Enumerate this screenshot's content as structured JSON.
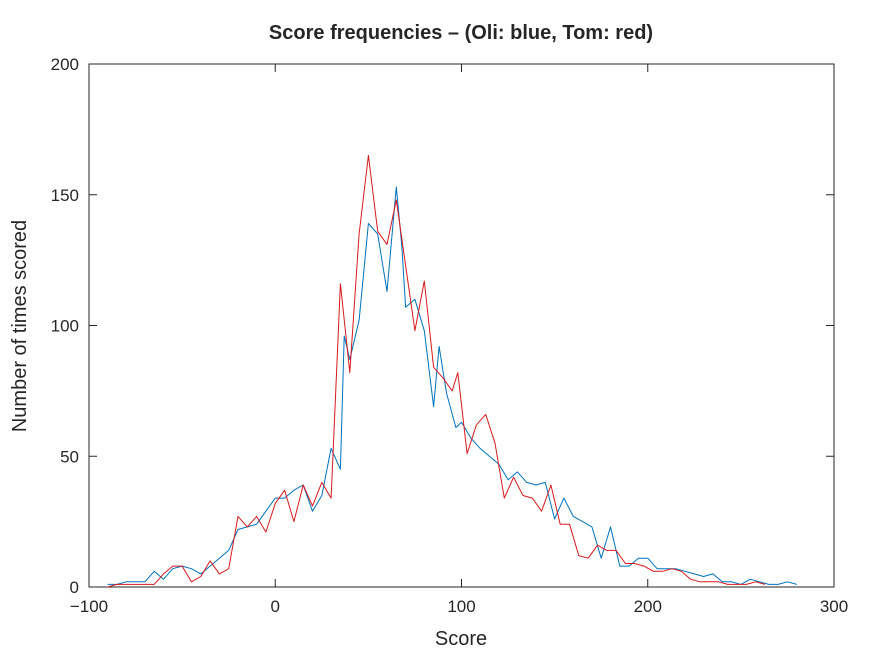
{
  "chart_data": {
    "type": "line",
    "title": "Score frequencies – (Oli: blue, Tom: red)",
    "xlabel": "Score",
    "ylabel": "Number of times scored",
    "xlim": [
      -100,
      300
    ],
    "ylim": [
      0,
      200
    ],
    "xticks": [
      -100,
      0,
      100,
      200,
      300
    ],
    "yticks": [
      0,
      50,
      100,
      150,
      200
    ],
    "xtick_labels": [
      "−100",
      "0",
      "100",
      "200",
      "300"
    ],
    "ytick_labels": [
      "0",
      "50",
      "100",
      "150",
      "200"
    ],
    "grid": false,
    "legend": "none",
    "series": [
      {
        "color": "#0072bd",
        "points": [
          [
            -90,
            1
          ],
          [
            -85,
            1
          ],
          [
            -80,
            2
          ],
          [
            -75,
            2
          ],
          [
            -70,
            2
          ],
          [
            -65,
            6
          ],
          [
            -60,
            3
          ],
          [
            -55,
            7
          ],
          [
            -50,
            8
          ],
          [
            -45,
            7
          ],
          [
            -40,
            5
          ],
          [
            -35,
            8
          ],
          [
            -30,
            11
          ],
          [
            -25,
            14
          ],
          [
            -20,
            22
          ],
          [
            -15,
            23
          ],
          [
            -10,
            24
          ],
          [
            -5,
            29
          ],
          [
            0,
            34
          ],
          [
            5,
            34
          ],
          [
            10,
            37
          ],
          [
            15,
            39
          ],
          [
            20,
            29
          ],
          [
            25,
            35
          ],
          [
            30,
            53
          ],
          [
            35,
            45
          ],
          [
            37,
            96
          ],
          [
            40,
            87
          ],
          [
            45,
            102
          ],
          [
            50,
            139
          ],
          [
            55,
            135
          ],
          [
            60,
            113
          ],
          [
            65,
            153
          ],
          [
            68,
            130
          ],
          [
            70,
            107
          ],
          [
            75,
            110
          ],
          [
            80,
            98
          ],
          [
            85,
            69
          ],
          [
            88,
            92
          ],
          [
            92,
            74
          ],
          [
            97,
            61
          ],
          [
            100,
            63
          ],
          [
            105,
            57
          ],
          [
            110,
            53
          ],
          [
            115,
            50
          ],
          [
            120,
            47
          ],
          [
            125,
            41
          ],
          [
            130,
            44
          ],
          [
            135,
            40
          ],
          [
            140,
            39
          ],
          [
            145,
            40
          ],
          [
            150,
            26
          ],
          [
            155,
            34
          ],
          [
            160,
            27
          ],
          [
            165,
            25
          ],
          [
            170,
            23
          ],
          [
            175,
            11
          ],
          [
            180,
            23
          ],
          [
            185,
            8
          ],
          [
            190,
            8
          ],
          [
            195,
            11
          ],
          [
            200,
            11
          ],
          [
            205,
            7
          ],
          [
            210,
            7
          ],
          [
            215,
            7
          ],
          [
            220,
            6
          ],
          [
            225,
            5
          ],
          [
            230,
            4
          ],
          [
            235,
            5
          ],
          [
            240,
            2
          ],
          [
            245,
            2
          ],
          [
            250,
            1
          ],
          [
            255,
            3
          ],
          [
            260,
            2
          ],
          [
            265,
            1
          ],
          [
            270,
            1
          ],
          [
            275,
            2
          ],
          [
            280,
            1
          ]
        ]
      },
      {
        "color": "#d7191c",
        "points": [
          [
            -90,
            0
          ],
          [
            -85,
            1
          ],
          [
            -80,
            1
          ],
          [
            -75,
            1
          ],
          [
            -70,
            1
          ],
          [
            -65,
            1
          ],
          [
            -60,
            5
          ],
          [
            -55,
            8
          ],
          [
            -50,
            8
          ],
          [
            -45,
            2
          ],
          [
            -40,
            4
          ],
          [
            -35,
            10
          ],
          [
            -30,
            5
          ],
          [
            -25,
            7
          ],
          [
            -20,
            27
          ],
          [
            -15,
            23
          ],
          [
            -10,
            27
          ],
          [
            -5,
            21
          ],
          [
            0,
            32
          ],
          [
            5,
            37
          ],
          [
            10,
            25
          ],
          [
            15,
            39
          ],
          [
            20,
            31
          ],
          [
            25,
            40
          ],
          [
            30,
            34
          ],
          [
            35,
            116
          ],
          [
            40,
            82
          ],
          [
            45,
            135
          ],
          [
            50,
            165
          ],
          [
            55,
            136
          ],
          [
            60,
            131
          ],
          [
            65,
            148
          ],
          [
            70,
            123
          ],
          [
            75,
            98
          ],
          [
            80,
            117
          ],
          [
            85,
            84
          ],
          [
            90,
            80
          ],
          [
            95,
            75
          ],
          [
            98,
            82
          ],
          [
            103,
            51
          ],
          [
            108,
            62
          ],
          [
            113,
            66
          ],
          [
            118,
            55
          ],
          [
            123,
            34
          ],
          [
            128,
            42
          ],
          [
            133,
            35
          ],
          [
            138,
            34
          ],
          [
            143,
            29
          ],
          [
            148,
            39
          ],
          [
            153,
            24
          ],
          [
            158,
            24
          ],
          [
            163,
            12
          ],
          [
            168,
            11
          ],
          [
            173,
            16
          ],
          [
            178,
            14
          ],
          [
            183,
            14
          ],
          [
            188,
            9
          ],
          [
            193,
            9
          ],
          [
            198,
            8
          ],
          [
            203,
            6
          ],
          [
            208,
            6
          ],
          [
            213,
            7
          ],
          [
            218,
            6
          ],
          [
            223,
            3
          ],
          [
            228,
            2
          ],
          [
            233,
            2
          ],
          [
            238,
            2
          ],
          [
            243,
            1
          ],
          [
            248,
            1
          ],
          [
            253,
            1
          ],
          [
            258,
            2
          ],
          [
            263,
            1
          ]
        ]
      }
    ]
  }
}
